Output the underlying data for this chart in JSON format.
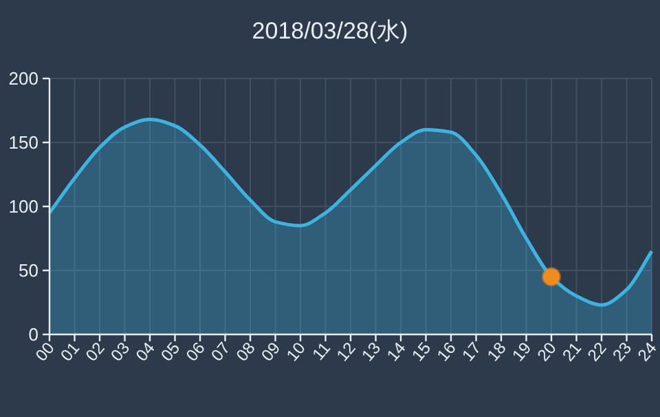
{
  "chart_data": {
    "type": "area",
    "title": "2018/03/28(水)",
    "categories": [
      "00",
      "01",
      "02",
      "03",
      "04",
      "05",
      "06",
      "07",
      "08",
      "09",
      "10",
      "11",
      "12",
      "13",
      "14",
      "15",
      "16",
      "17",
      "18",
      "19",
      "20",
      "21",
      "22",
      "23",
      "24"
    ],
    "series": [
      {
        "color": "#3db4e0",
        "values": [
          95,
          122,
          146,
          162,
          168,
          163,
          148,
          127,
          105,
          88,
          85,
          95,
          113,
          132,
          150,
          160,
          158,
          140,
          110,
          75,
          45,
          30,
          23,
          35,
          65
        ]
      },
      {
        "type": "scatter",
        "color": "#f08c1e",
        "x": [
          "20"
        ],
        "values": [
          45
        ]
      }
    ],
    "ylim": [
      0,
      200
    ],
    "yticks": [
      0,
      50,
      100,
      150,
      200
    ],
    "grid": true
  }
}
